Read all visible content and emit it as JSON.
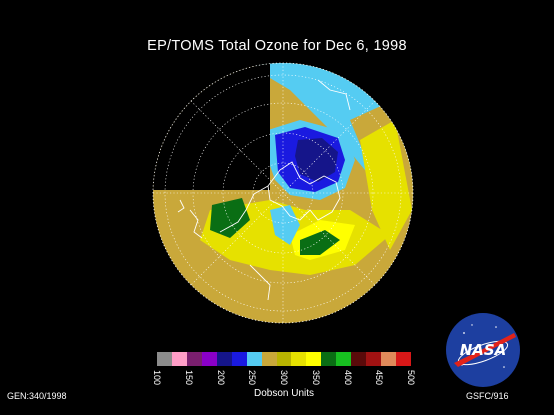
{
  "title": "EP/TOMS Total Ozone for Dec  6, 1998",
  "legend": {
    "units_label": "Dobson Units",
    "ticks": [
      "100",
      "150",
      "200",
      "250",
      "300",
      "350",
      "400",
      "450",
      "500"
    ],
    "colors": [
      "#8c8c8c",
      "#ff9ec7",
      "#7a1f6e",
      "#8a00c8",
      "#15158a",
      "#1a1ae0",
      "#55ccf2",
      "#c9a83a",
      "#b9b400",
      "#e6e100",
      "#ffff00",
      "#0a6e14",
      "#17c020",
      "#5a0a0a",
      "#a01212",
      "#e08a5a",
      "#d81818"
    ]
  },
  "footer": {
    "left_code": "GEN:340/1998",
    "right_code": "GSFC/916"
  },
  "logo": {
    "text": "NASA"
  },
  "map": {
    "projection": "orthographic-south-polar",
    "no_data_color": "#000000",
    "colors": {
      "low": "#1a1ae0",
      "core": "#15158a",
      "edge": "#55ccf2",
      "mid": "#c9a83a",
      "high": "#e6e100",
      "peak": "#ffff00",
      "green": "#0a6e14",
      "coast": "#ffffff"
    }
  }
}
